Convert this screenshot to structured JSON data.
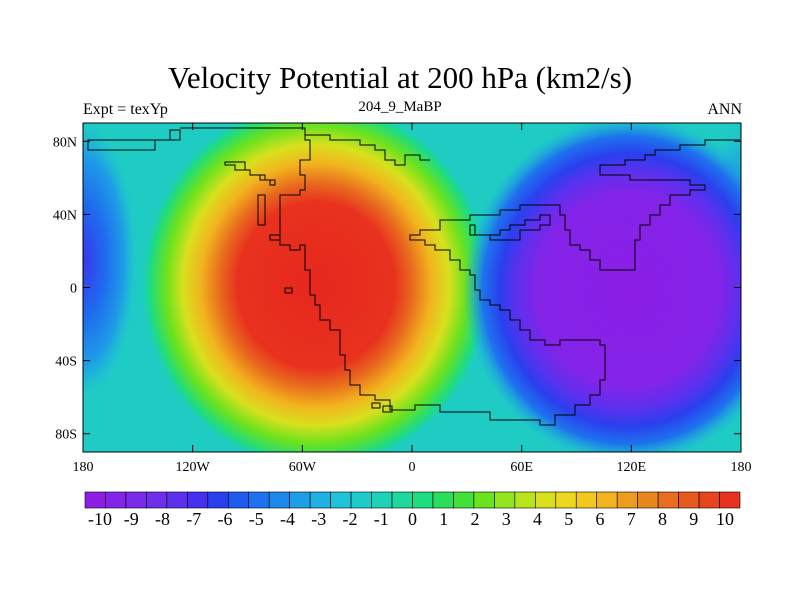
{
  "title": "Velocity Potential at 200 hPa (km2/s)",
  "left_label": "Expt = texYp",
  "center_label": "204_9_MaBP",
  "right_label": "ANN",
  "map": {
    "lon_range": [
      -180,
      180
    ],
    "lat_range": [
      -90,
      90
    ],
    "lon_ticks": [
      {
        "value": -180,
        "label": "180"
      },
      {
        "value": -120,
        "label": "120W"
      },
      {
        "value": -60,
        "label": "60W"
      },
      {
        "value": 0,
        "label": "0"
      },
      {
        "value": 60,
        "label": "60E"
      },
      {
        "value": 120,
        "label": "120E"
      },
      {
        "value": 180,
        "label": "180"
      }
    ],
    "lat_ticks": [
      {
        "value": 80,
        "label": "80N"
      },
      {
        "value": 40,
        "label": "40N"
      },
      {
        "value": 0,
        "label": "0"
      },
      {
        "value": -40,
        "label": "40S"
      },
      {
        "value": -80,
        "label": "80S"
      }
    ],
    "background_color": "#1fc8c8",
    "features": [
      {
        "name": "positive-maximum-western-hemisphere",
        "center_lon": -60,
        "center_lat": 0,
        "value": 10,
        "color": "#e8281e"
      },
      {
        "name": "negative-minimum-eastern-hemisphere",
        "center_lon": 140,
        "center_lat": 0,
        "value": -10,
        "color": "#8a1fe6"
      },
      {
        "name": "negative-lobe-dateline",
        "center_lon": -178,
        "center_lat": 10,
        "value": -7
      }
    ],
    "coastline": "continental outline (idealized paleo-geography)"
  },
  "colorbar": {
    "labels": [
      "-10",
      "-9",
      "-8",
      "-7",
      "-6",
      "-5",
      "-4",
      "-3",
      "-2",
      "-1",
      "0",
      "1",
      "2",
      "3",
      "4",
      "5",
      "6",
      "7",
      "8",
      "9",
      "10"
    ],
    "colors": [
      "#8c1ee6",
      "#8424e8",
      "#7a2aea",
      "#6e2eec",
      "#5c30ee",
      "#4430ee",
      "#2a40ee",
      "#1e5aee",
      "#1e72ee",
      "#1e88ea",
      "#1e9ee6",
      "#1eb2e2",
      "#1ec2da",
      "#1ecccc",
      "#1ed2b8",
      "#1ed89e",
      "#1edc80",
      "#2ade5c",
      "#44e03a",
      "#6ae21e",
      "#94e41e",
      "#b8e41e",
      "#d8e01e",
      "#ecd81e",
      "#f2c81e",
      "#f2b41e",
      "#ee9c1e",
      "#ea861e",
      "#e66e1e",
      "#e65a1e",
      "#e6461e",
      "#e6321e"
    ]
  }
}
